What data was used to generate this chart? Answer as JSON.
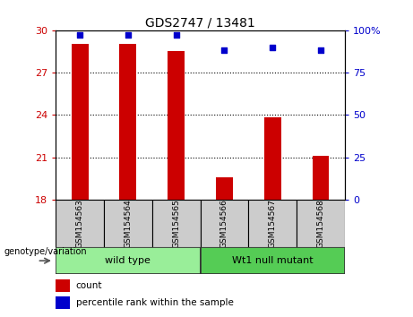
{
  "title": "GDS2747 / 13481",
  "samples": [
    "GSM154563",
    "GSM154564",
    "GSM154565",
    "GSM154566",
    "GSM154567",
    "GSM154568"
  ],
  "bar_values": [
    29.0,
    29.0,
    28.5,
    19.6,
    23.8,
    21.1
  ],
  "bar_baseline": 18,
  "percentile_values": [
    97,
    97,
    97,
    88,
    90,
    88
  ],
  "ylim_left": [
    18,
    30
  ],
  "ylim_right": [
    0,
    100
  ],
  "yticks_left": [
    18,
    21,
    24,
    27,
    30
  ],
  "yticks_right": [
    0,
    25,
    50,
    75,
    100
  ],
  "grid_lines": [
    21,
    24,
    27
  ],
  "bar_color": "#cc0000",
  "percentile_color": "#0000cc",
  "bar_width": 0.35,
  "groups": [
    {
      "label": "wild type",
      "indices": [
        0,
        1,
        2
      ],
      "color": "#99ee99"
    },
    {
      "label": "Wt1 null mutant",
      "indices": [
        3,
        4,
        5
      ],
      "color": "#55cc55"
    }
  ],
  "group_label": "genotype/variation",
  "legend_count_label": "count",
  "legend_percentile_label": "percentile rank within the sample",
  "tick_color_left": "#cc0000",
  "tick_color_right": "#0000cc",
  "xlabel_box_color": "#cccccc",
  "main_axes": [
    0.135,
    0.37,
    0.7,
    0.535
  ],
  "label_axes": [
    0.135,
    0.22,
    0.7,
    0.15
  ],
  "group_axes": [
    0.135,
    0.135,
    0.7,
    0.085
  ],
  "legend_axes": [
    0.135,
    0.02,
    0.7,
    0.11
  ]
}
